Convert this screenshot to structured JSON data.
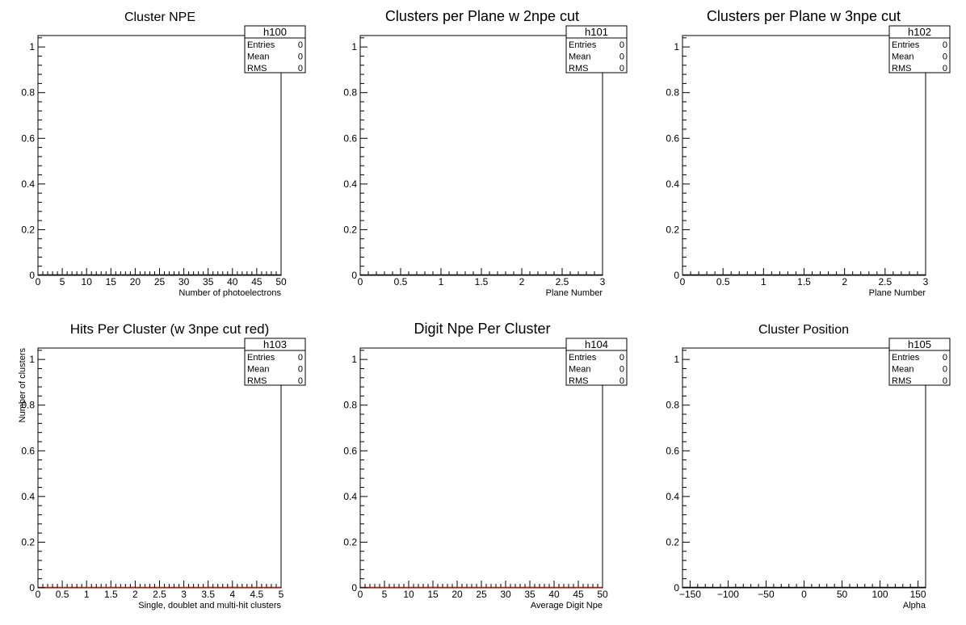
{
  "chart_data": [
    {
      "type": "bar",
      "title": "Cluster NPE",
      "xlabel": "Number of photoelectrons",
      "ylabel": "",
      "xlim": [
        0,
        50
      ],
      "ylim": [
        0,
        1.05
      ],
      "xticks": [
        "0",
        "5",
        "10",
        "15",
        "20",
        "25",
        "30",
        "35",
        "40",
        "45",
        "50"
      ],
      "yticks": [
        "0",
        "0.2",
        "0.4",
        "0.6",
        "0.8",
        "1"
      ],
      "series": [
        {
          "values": []
        }
      ],
      "stats": {
        "name": "h100",
        "rows": [
          {
            "label": "Entries",
            "value": "0"
          },
          {
            "label": "Mean",
            "value": "0"
          },
          {
            "label": "RMS",
            "value": "0"
          }
        ]
      },
      "line_color": "#000000"
    },
    {
      "type": "bar",
      "title": "Clusters per Plane w 2npe cut",
      "xlabel": "Plane Number",
      "ylabel": "",
      "xlim": [
        0,
        3
      ],
      "ylim": [
        0,
        1.05
      ],
      "xticks": [
        "0",
        "0.5",
        "1",
        "1.5",
        "2",
        "2.5",
        "3"
      ],
      "yticks": [
        "0",
        "0.2",
        "0.4",
        "0.6",
        "0.8",
        "1"
      ],
      "series": [
        {
          "values": []
        }
      ],
      "stats": {
        "name": "h101",
        "rows": [
          {
            "label": "Entries",
            "value": "0"
          },
          {
            "label": "Mean",
            "value": "0"
          },
          {
            "label": "RMS",
            "value": "0"
          }
        ]
      },
      "line_color": "#000000"
    },
    {
      "type": "bar",
      "title": "Clusters per Plane w 3npe cut",
      "xlabel": "Plane Number",
      "ylabel": "",
      "xlim": [
        0,
        3
      ],
      "ylim": [
        0,
        1.05
      ],
      "xticks": [
        "0",
        "0.5",
        "1",
        "1.5",
        "2",
        "2.5",
        "3"
      ],
      "yticks": [
        "0",
        "0.2",
        "0.4",
        "0.6",
        "0.8",
        "1"
      ],
      "series": [
        {
          "values": []
        }
      ],
      "stats": {
        "name": "h102",
        "rows": [
          {
            "label": "Entries",
            "value": "0"
          },
          {
            "label": "Mean",
            "value": "0"
          },
          {
            "label": "RMS",
            "value": "0"
          }
        ]
      },
      "line_color": "#000000"
    },
    {
      "type": "bar",
      "title": "Hits Per Cluster (w 3npe cut red)",
      "xlabel": "Single, doublet and multi-hit clusters",
      "ylabel": "Number of clusters",
      "xlim": [
        0,
        5
      ],
      "ylim": [
        0,
        1.05
      ],
      "xticks": [
        "0",
        "0.5",
        "1",
        "1.5",
        "2",
        "2.5",
        "3",
        "3.5",
        "4",
        "4.5",
        "5"
      ],
      "yticks": [
        "0",
        "0.2",
        "0.4",
        "0.6",
        "0.8",
        "1"
      ],
      "series": [
        {
          "values": []
        }
      ],
      "stats": {
        "name": "h103",
        "rows": [
          {
            "label": "Entries",
            "value": "0"
          },
          {
            "label": "Mean",
            "value": "0"
          },
          {
            "label": "RMS",
            "value": "0"
          }
        ]
      },
      "line_color": "#ff0000"
    },
    {
      "type": "bar",
      "title": "Digit Npe Per Cluster",
      "xlabel": "Average Digit Npe",
      "ylabel": "",
      "xlim": [
        0,
        50
      ],
      "ylim": [
        0,
        1.05
      ],
      "xticks": [
        "0",
        "5",
        "10",
        "15",
        "20",
        "25",
        "30",
        "35",
        "40",
        "45",
        "50"
      ],
      "yticks": [
        "0",
        "0.2",
        "0.4",
        "0.6",
        "0.8",
        "1"
      ],
      "series": [
        {
          "values": []
        }
      ],
      "stats": {
        "name": "h104",
        "rows": [
          {
            "label": "Entries",
            "value": "0"
          },
          {
            "label": "Mean",
            "value": "0"
          },
          {
            "label": "RMS",
            "value": "0"
          }
        ]
      },
      "line_color": "#ff0000"
    },
    {
      "type": "bar",
      "title": "Cluster Position",
      "xlabel": "Alpha",
      "ylabel": "",
      "xlim": [
        -160,
        160
      ],
      "ylim": [
        0,
        1.05
      ],
      "xticks": [
        "−150",
        "−100",
        "−50",
        "0",
        "50",
        "100",
        "150"
      ],
      "yticks": [
        "0",
        "0.2",
        "0.4",
        "0.6",
        "0.8",
        "1"
      ],
      "series": [
        {
          "values": []
        }
      ],
      "stats": {
        "name": "h105",
        "rows": [
          {
            "label": "Entries",
            "value": "0"
          },
          {
            "label": "Mean",
            "value": "0"
          },
          {
            "label": "RMS",
            "value": "0"
          }
        ]
      },
      "line_color": "#000000"
    }
  ]
}
